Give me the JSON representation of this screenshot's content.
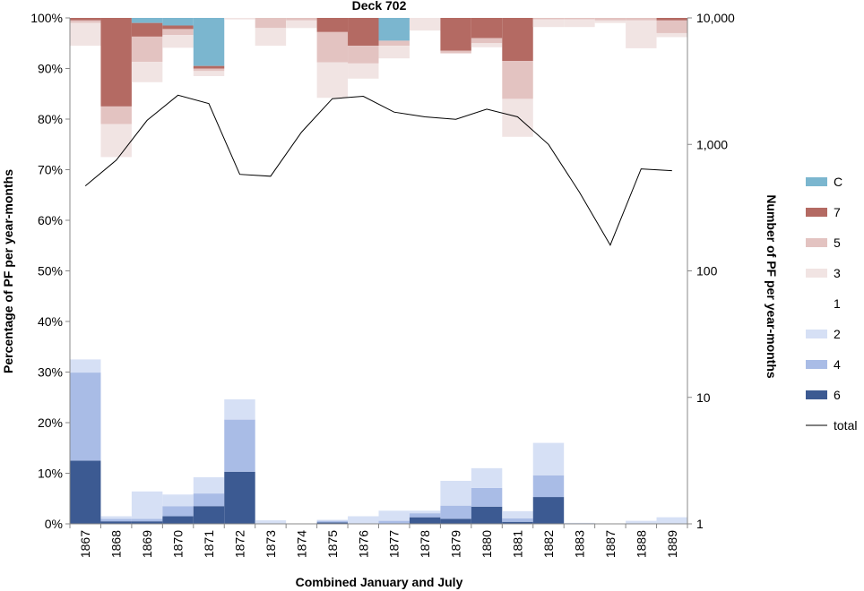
{
  "chart_data": {
    "type": "bar",
    "title": "Deck 702",
    "xlabel": "Combined January and July",
    "ylabel_left": "Percentage of  PF per year-months",
    "ylabel_right": "Number of PF per year-months",
    "categories": [
      "1867",
      "1868",
      "1869",
      "1870",
      "1871",
      "1872",
      "1873",
      "1874",
      "1875",
      "1876",
      "1877",
      "1878",
      "1879",
      "1880",
      "1881",
      "1882",
      "1883",
      "1887",
      "1888",
      "1889"
    ],
    "left_axis": {
      "ylim": [
        0,
        100
      ],
      "ticks": [
        "0%",
        "10%",
        "20%",
        "30%",
        "40%",
        "50%",
        "60%",
        "70%",
        "80%",
        "90%",
        "100%"
      ]
    },
    "right_axis": {
      "scale": "log",
      "ylim": [
        1,
        10000
      ],
      "ticks": [
        "1",
        "10",
        "100",
        "1,000",
        "10,000"
      ]
    },
    "bottom_series": [
      {
        "name": "6",
        "color": "#3c5a92",
        "values": [
          12.5,
          0.5,
          0.5,
          1.5,
          3.5,
          10.3,
          0,
          0,
          0.3,
          0,
          0,
          1.3,
          1,
          3.4,
          0.4,
          5.3,
          0,
          0,
          0,
          0
        ]
      },
      {
        "name": "4",
        "color": "#a9bce6",
        "values": [
          17.4,
          0.5,
          0.5,
          2,
          2.5,
          10.3,
          0,
          0,
          0.3,
          0,
          0.6,
          0.8,
          2.6,
          3.7,
          0.7,
          4.3,
          0,
          0,
          0,
          0
        ]
      },
      {
        "name": "2",
        "color": "#d6e0f5",
        "values": [
          2.6,
          0.5,
          5.4,
          2.3,
          3.2,
          4,
          0.7,
          0,
          0.2,
          1.5,
          2,
          0.5,
          4.9,
          3.9,
          1.4,
          6.4,
          0.2,
          0,
          0.6,
          1.3
        ]
      }
    ],
    "top_series": [
      {
        "name": "C",
        "color": "#7bb6cf",
        "values": [
          0,
          0,
          1,
          1.5,
          9.5,
          0,
          0,
          0,
          0,
          0,
          4.5,
          0,
          0,
          0,
          0,
          0,
          0,
          0,
          0,
          0
        ]
      },
      {
        "name": "7",
        "color": "#b46a63",
        "values": [
          0.5,
          17.5,
          2.7,
          0.7,
          0.5,
          0,
          0,
          0,
          2.8,
          5.5,
          0,
          0,
          6.5,
          4,
          8.5,
          0,
          0,
          0,
          0,
          0.5
        ]
      },
      {
        "name": "5",
        "color": "#e3c3c1",
        "values": [
          0.5,
          3.5,
          5,
          1.2,
          0.5,
          0,
          2,
          0.5,
          6,
          3.5,
          1,
          0,
          0.5,
          1,
          7.5,
          0.3,
          0.3,
          0.5,
          0.5,
          2.5
        ]
      },
      {
        "name": "3",
        "color": "#f1e4e3",
        "values": [
          4.5,
          6.5,
          4,
          2.5,
          1,
          0.3,
          3.5,
          1.5,
          7,
          3,
          2.5,
          2.5,
          0,
          0.8,
          7.5,
          1.5,
          1.5,
          0.5,
          5.5,
          0.8
        ]
      },
      {
        "name": "1",
        "color": "#ffffff",
        "values": [
          0,
          0,
          0,
          0,
          0,
          0,
          0,
          0,
          0,
          0,
          0,
          0,
          0,
          0,
          0,
          0,
          0,
          0,
          0,
          0
        ]
      }
    ],
    "total": {
      "name": "total",
      "color": "#000000",
      "values": [
        470,
        750,
        1550,
        2450,
        2100,
        580,
        560,
        1250,
        2300,
        2400,
        1800,
        1650,
        1580,
        1900,
        1650,
        1000,
        420,
        160,
        640,
        620
      ]
    },
    "legend": [
      "C",
      "7",
      "5",
      "3",
      "1",
      "2",
      "4",
      "6",
      "total"
    ]
  }
}
